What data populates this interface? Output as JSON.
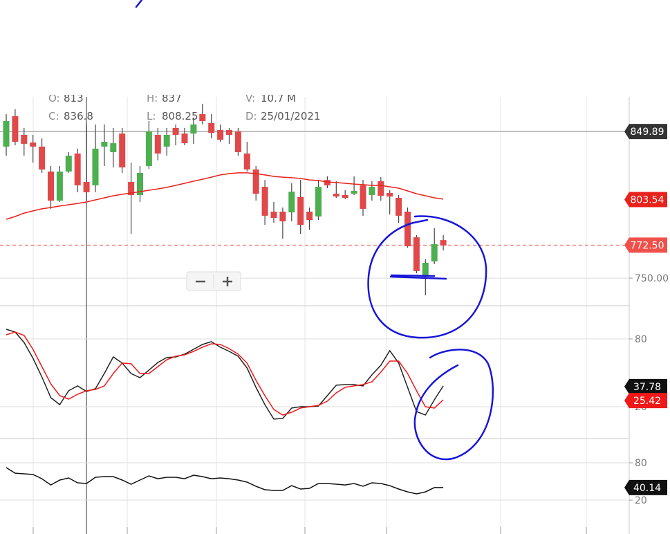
{
  "info": [
    {
      "label": "O:",
      "value": "813"
    },
    {
      "label": "H:",
      "value": "837"
    },
    {
      "label": "V:",
      "value": "10.7 M"
    },
    {
      "label": "C:",
      "value": "836.8"
    },
    {
      "label": "L:",
      "value": "808.25"
    },
    {
      "label": "D:",
      "value": "25/01/2021"
    }
  ],
  "chart_data": [
    {
      "type": "candlestick",
      "up_color": "#4caf50",
      "down_color": "#e0484a",
      "wick_color": "#444",
      "open": [
        839.6,
        860.3,
        847.6,
        842.4,
        839.6,
        822.6,
        802.8,
        822.6,
        834.9,
        815.5,
        813.2,
        839.6,
        835.8,
        848.5,
        815.5,
        806.6,
        826.4,
        847.6,
        839.6,
        852.3,
        848.5,
        848.5,
        861.7,
        855.6,
        850.9,
        850.9,
        849.9,
        834.9,
        824.0,
        812.2,
        795.3,
        795.3,
        794.8,
        805.2,
        795.3,
        792.0,
        816.9,
        807.5,
        806.6,
        807.5,
        813.2,
        806.6,
        816.0,
        808.0,
        804.7,
        795.3,
        777.8,
        750.9,
        761.4,
        775.9
      ],
      "high": [
        861.7,
        865.0,
        852.3,
        847.6,
        845.2,
        826.4,
        826.4,
        835.8,
        838.2,
        854.7,
        854.7,
        854.7,
        852.3,
        852.3,
        828.7,
        826.4,
        857.0,
        852.3,
        852.3,
        854.7,
        852.3,
        859.4,
        868.8,
        861.7,
        854.7,
        852.3,
        852.3,
        842.9,
        826.4,
        816.9,
        801.9,
        798.1,
        814.6,
        816.9,
        798.1,
        816.9,
        819.3,
        816.0,
        809.9,
        819.3,
        816.9,
        816.0,
        818.8,
        809.9,
        806.6,
        798.1,
        779.3,
        762.8,
        784.0,
        779.3
      ],
      "low": [
        833.4,
        840.5,
        833.4,
        828.7,
        821.7,
        797.2,
        801.9,
        821.7,
        808.5,
        802.8,
        808.5,
        826.4,
        825.4,
        821.7,
        780.2,
        801.9,
        824.5,
        830.2,
        833.4,
        840.5,
        840.5,
        841.5,
        854.7,
        845.2,
        842.9,
        841.5,
        833.4,
        822.6,
        802.8,
        786.3,
        787.7,
        776.9,
        788.7,
        780.2,
        783.0,
        789.6,
        811.3,
        804.7,
        803.8,
        806.6,
        792.5,
        802.8,
        802.8,
        793.4,
        787.7,
        770.8,
        753.3,
        738.3,
        759.5,
        768.9
      ],
      "close": [
        857.0,
        842.9,
        841.5,
        839.6,
        824.0,
        802.8,
        822.6,
        833.4,
        813.2,
        808.5,
        838.2,
        842.9,
        841.9,
        825.4,
        806.6,
        821.7,
        849.9,
        834.9,
        847.6,
        847.6,
        841.9,
        854.7,
        857.0,
        849.0,
        844.3,
        847.6,
        835.8,
        824.0,
        807.5,
        792.5,
        791.0,
        788.7,
        808.9,
        786.3,
        789.6,
        812.2,
        813.2,
        805.6,
        804.7,
        809.4,
        797.2,
        812.2,
        806.1,
        805.6,
        792.5,
        771.7,
        754.8,
        760.4,
        773.1,
        772.2
      ],
      "overlay": {
        "color": "#e8211b",
        "values": [
          790.1,
          792.0,
          794.3,
          795.8,
          797.2,
          798.1,
          799.1,
          800.0,
          800.9,
          801.9,
          803.3,
          804.7,
          806.1,
          807.1,
          808.0,
          808.9,
          809.9,
          810.8,
          811.8,
          813.2,
          814.6,
          816.0,
          817.4,
          818.8,
          820.3,
          821.2,
          821.7,
          821.7,
          821.2,
          820.3,
          819.3,
          818.8,
          818.4,
          817.9,
          816.9,
          816.5,
          815.5,
          815.1,
          814.6,
          814.1,
          813.7,
          813.2,
          813.2,
          812.2,
          811.3,
          809.4,
          807.5,
          806.1,
          804.7,
          803.8
        ]
      },
      "crosshair_index": 9,
      "ylim": [
        731.2,
        873.5
      ],
      "yticks": [
        {
          "value": 750,
          "label": "750.00"
        }
      ],
      "grid": true,
      "tags": [
        {
          "value": 849.89,
          "color": "#333333",
          "line": "solid"
        },
        {
          "value": 803.54,
          "color": "#e8211b"
        },
        {
          "value": 772.5,
          "label": "772.50",
          "color": "#f0504a",
          "line": "dashed"
        }
      ]
    },
    {
      "type": "line",
      "series": [
        {
          "color": "#222222",
          "values": [
            88.6,
            86.1,
            76.9,
            62.9,
            46.3,
            28.0,
            21.8,
            34.1,
            38.4,
            33.5,
            35.9,
            49.4,
            64.1,
            58.6,
            49.4,
            45.7,
            52.4,
            59.2,
            63.5,
            64.1,
            66.5,
            70.8,
            75.1,
            77.6,
            72.7,
            69.0,
            64.7,
            54.3,
            37.1,
            21.8,
            9.0,
            9.6,
            18.8,
            20.0,
            20.0,
            20.6,
            29.8,
            39.0,
            39.6,
            39.6,
            38.4,
            48.2,
            56.7,
            69.6,
            58.6,
            37.1,
            15.7,
            12.6,
            26.1,
            38.4
          ]
        },
        {
          "color": "#f01818",
          "values": [
            83.7,
            86.1,
            83.1,
            70.8,
            55.5,
            40.2,
            29.8,
            26.7,
            31.0,
            34.1,
            35.3,
            38.4,
            49.4,
            58.6,
            58.0,
            49.4,
            49.4,
            55.5,
            61.6,
            64.7,
            65.9,
            69.0,
            72.7,
            75.7,
            75.1,
            71.4,
            66.5,
            58.6,
            43.3,
            29.8,
            17.5,
            12.6,
            15.1,
            18.8,
            20.0,
            21.2,
            24.9,
            32.2,
            37.1,
            38.4,
            39.6,
            42.0,
            50.6,
            60.4,
            60.4,
            49.4,
            34.1,
            20.0,
            18.8,
            26.1
          ]
        }
      ],
      "ylim": [
        -8.2,
        109.4
      ],
      "yticks": [
        80,
        20
      ],
      "grid": true,
      "tags": [
        {
          "value": 37.78,
          "color": "#111111"
        },
        {
          "value": 25.42,
          "color": "#f01818"
        }
      ]
    },
    {
      "type": "line",
      "series": [
        {
          "color": "#111111",
          "values": [
            72.2,
            63.3,
            62.2,
            61.1,
            54.4,
            44.4,
            52.2,
            55.6,
            47.8,
            46.7,
            56.7,
            57.8,
            57.8,
            52.2,
            45.6,
            52.2,
            58.9,
            54.4,
            56.7,
            56.7,
            54.4,
            60.0,
            57.8,
            54.4,
            55.6,
            54.4,
            52.2,
            48.9,
            42.2,
            36.7,
            35.6,
            35.6,
            43.3,
            37.8,
            38.9,
            46.7,
            46.7,
            45.6,
            44.4,
            46.7,
            42.2,
            47.8,
            46.7,
            43.3,
            37.8,
            33.3,
            30.0,
            33.3,
            40.1,
            40.1
          ]
        }
      ],
      "ylim": [
        -34.4,
        118.9
      ],
      "yticks": [
        80,
        20
      ],
      "grid": true,
      "tags": [
        {
          "value": 40.14,
          "color": "#111111"
        }
      ]
    }
  ]
}
